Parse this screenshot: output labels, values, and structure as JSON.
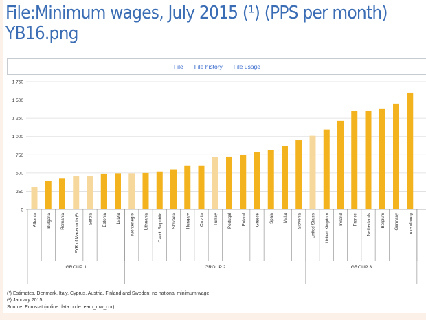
{
  "page": {
    "title": "File:Minimum wages, July 2015 (¹) (PPS per month) YB16.png"
  },
  "tabs": [
    {
      "label": "File"
    },
    {
      "label": "File history"
    },
    {
      "label": "File usage"
    }
  ],
  "chart_data": {
    "type": "bar",
    "ylim": [
      0,
      1750
    ],
    "yticks": [
      "0",
      "250",
      "500",
      "750",
      "1 000",
      "1 250",
      "1 500",
      "1 750"
    ],
    "grid": true,
    "colors": {
      "main": "#f2b31f",
      "highlight": "#f7d89c"
    },
    "categories": [
      "Albania",
      "Bulgaria",
      "Romania",
      "FYR of Macedonia (²)",
      "Serbia",
      "Estonia",
      "Latvia",
      "Montenegro",
      "Lithuania",
      "Czech Republic",
      "Slovakia",
      "Hungary",
      "Croatia",
      "Turkey",
      "Portugal",
      "Poland",
      "Greece",
      "Spain",
      "Malta",
      "Slovenia",
      "United States",
      "United Kingdom",
      "Ireland",
      "France",
      "Netherlands",
      "Belgium",
      "Germany",
      "Luxembourg"
    ],
    "values": [
      305,
      395,
      430,
      455,
      455,
      490,
      495,
      495,
      500,
      520,
      550,
      595,
      595,
      715,
      725,
      750,
      790,
      815,
      870,
      950,
      1010,
      1095,
      1215,
      1350,
      1355,
      1375,
      1450,
      1600
    ],
    "non_eu": [
      true,
      false,
      false,
      true,
      true,
      false,
      false,
      true,
      false,
      false,
      false,
      false,
      false,
      true,
      false,
      false,
      false,
      false,
      false,
      false,
      true,
      false,
      false,
      false,
      false,
      false,
      false,
      false
    ],
    "groups": [
      {
        "label": "GROUP 1",
        "from": 0,
        "to": 6
      },
      {
        "label": "GROUP 2",
        "from": 7,
        "to": 19
      },
      {
        "label": "GROUP 3",
        "from": 20,
        "to": 27
      }
    ]
  },
  "footnotes": {
    "note1": "(¹) Estimates. Denmark, Italy, Cyprus, Austria, Finland and Sweden: no national minimum wage.",
    "note2": "(²) January 2015",
    "source": "Source: Eurostat (online data code: earn_mw_cur)"
  }
}
